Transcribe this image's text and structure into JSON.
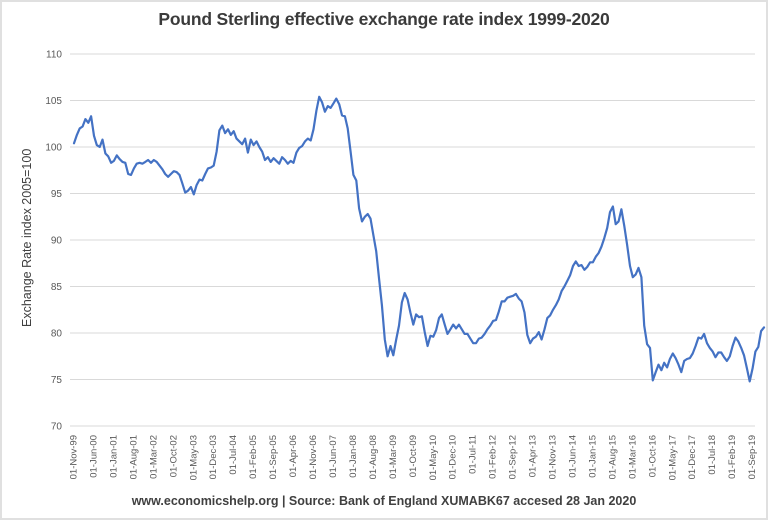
{
  "title": "Pound Sterling effective exchange rate index 1999-2020",
  "footer": "www.economicshelp.org | Source: Bank of England XUMABK67 accesed 28 Jan 2020",
  "colors": {
    "line": "#4472C4",
    "grid": "#d9d9d9",
    "tick_text": "#595959",
    "title_text": "#3b3b3b",
    "footer_text": "#404040",
    "background": "#ffffff",
    "border": "#e0e0e0"
  },
  "chart_data": {
    "type": "line",
    "title": "Pound Sterling effective exchange rate index 1999-2020",
    "xlabel": "",
    "ylabel": "Exchange Rate index 2005=100",
    "ylim": [
      70,
      110
    ],
    "y_ticks": [
      110,
      105,
      100,
      95,
      90,
      85,
      80,
      75,
      70
    ],
    "grid": true,
    "legend_position": "none",
    "x_start": "1999-11",
    "x_end": "2020-01",
    "frequency": "monthly",
    "x_tick_step_months": 7,
    "x_tick_labels": [
      "01-Nov-99",
      "01-Jun-00",
      "01-Jan-01",
      "01-Aug-01",
      "01-Mar-02",
      "01-Oct-02",
      "01-May-03",
      "01-Dec-03",
      "01-Jul-04",
      "01-Feb-05",
      "01-Sep-05",
      "01-Apr-06",
      "01-Nov-06",
      "01-Jun-07",
      "01-Jan-08",
      "01-Aug-08",
      "01-Mar-09",
      "01-Oct-09",
      "01-May-10",
      "01-Dec-10",
      "01-Jul-11",
      "01-Feb-12",
      "01-Sep-12",
      "01-Apr-13",
      "01-Nov-13",
      "01-Jun-14",
      "01-Jan-15",
      "01-Aug-15",
      "01-Mar-16",
      "01-Oct-16",
      "01-May-17",
      "01-Dec-17",
      "01-Jul-18",
      "01-Feb-19",
      "01-Sep-19"
    ],
    "series": [
      {
        "name": "Sterling effective exchange rate index (XUMABK67)",
        "color": "#4472C4",
        "values": [
          100.4,
          101.3,
          102.0,
          102.2,
          103.0,
          102.6,
          103.3,
          101.2,
          100.2,
          100.0,
          100.8,
          99.3,
          99.0,
          98.3,
          98.5,
          99.1,
          98.7,
          98.4,
          98.3,
          97.1,
          97.0,
          97.7,
          98.2,
          98.3,
          98.2,
          98.4,
          98.6,
          98.3,
          98.6,
          98.4,
          98.0,
          97.6,
          97.1,
          96.8,
          97.1,
          97.4,
          97.3,
          97.0,
          96.1,
          95.1,
          95.3,
          95.7,
          94.9,
          95.9,
          96.5,
          96.4,
          97.1,
          97.7,
          97.8,
          98.0,
          99.5,
          101.8,
          102.3,
          101.5,
          101.9,
          101.3,
          101.7,
          100.9,
          100.6,
          100.3,
          100.9,
          99.4,
          100.8,
          100.2,
          100.6,
          100.0,
          99.5,
          98.6,
          98.9,
          98.4,
          98.8,
          98.5,
          98.2,
          98.9,
          98.6,
          98.2,
          98.5,
          98.3,
          99.4,
          99.9,
          100.1,
          100.6,
          100.9,
          100.7,
          101.9,
          103.9,
          105.4,
          104.8,
          103.8,
          104.4,
          104.2,
          104.7,
          105.2,
          104.6,
          103.4,
          103.3,
          102.0,
          99.5,
          97.0,
          96.4,
          93.4,
          92.0,
          92.5,
          92.8,
          92.3,
          90.5,
          88.8,
          85.8,
          83.0,
          79.3,
          77.5,
          78.6,
          77.6,
          79.3,
          80.8,
          83.3,
          84.3,
          83.6,
          82.2,
          80.9,
          82.0,
          81.7,
          81.8,
          80.1,
          78.6,
          79.7,
          79.6,
          80.3,
          81.6,
          82.0,
          80.9,
          79.9,
          80.4,
          80.9,
          80.5,
          80.9,
          80.4,
          79.9,
          79.9,
          79.4,
          78.9,
          78.9,
          79.4,
          79.5,
          79.9,
          80.4,
          80.8,
          81.3,
          81.4,
          82.3,
          83.4,
          83.4,
          83.8,
          83.9,
          84.0,
          84.2,
          83.7,
          83.4,
          82.2,
          79.8,
          78.9,
          79.4,
          79.6,
          80.1,
          79.3,
          80.4,
          81.6,
          81.9,
          82.5,
          83.0,
          83.6,
          84.5,
          85.0,
          85.6,
          86.2,
          87.2,
          87.7,
          87.2,
          87.3,
          86.8,
          87.1,
          87.6,
          87.6,
          88.2,
          88.6,
          89.3,
          90.2,
          91.3,
          93.0,
          93.6,
          91.7,
          92.0,
          93.3,
          91.5,
          89.5,
          87.2,
          86.0,
          86.3,
          87.0,
          86.0,
          80.8,
          78.8,
          78.4,
          74.9,
          75.8,
          76.6,
          76.0,
          76.8,
          76.3,
          77.2,
          77.8,
          77.3,
          76.6,
          75.8,
          77.0,
          77.2,
          77.3,
          77.8,
          78.6,
          79.5,
          79.4,
          79.9,
          78.9,
          78.4,
          78.0,
          77.4,
          77.9,
          77.9,
          77.4,
          77.0,
          77.5,
          78.6,
          79.5,
          79.1,
          78.4,
          77.6,
          76.2,
          74.8,
          76.2,
          78.0,
          78.5,
          80.2,
          80.6
        ]
      }
    ]
  }
}
